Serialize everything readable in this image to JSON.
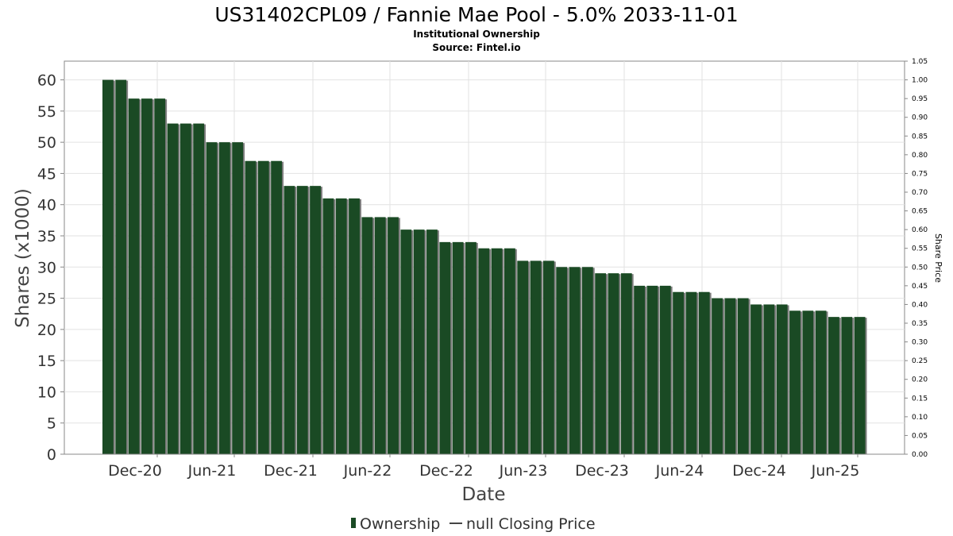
{
  "chart_data": {
    "type": "bar",
    "title": "US31402CPL09 / Fannie Mae Pool - 5.0% 2033-11-01",
    "subtitle": "Institutional Ownership",
    "source": "Source: Fintel.io",
    "xlabel": "Date",
    "ylabel": "Shares (x1000)",
    "y2label": "Share Price",
    "ylim": [
      0,
      63
    ],
    "y2lim": [
      0,
      1.05
    ],
    "yticks": [
      "0",
      "5",
      "10",
      "15",
      "20",
      "25",
      "30",
      "35",
      "40",
      "45",
      "50",
      "55",
      "60"
    ],
    "y2ticks": [
      "0.00",
      "0.05",
      "0.10",
      "0.15",
      "0.20",
      "0.25",
      "0.30",
      "0.35",
      "0.40",
      "0.45",
      "0.50",
      "0.55",
      "0.60",
      "0.65",
      "0.70",
      "0.75",
      "0.80",
      "0.85",
      "0.90",
      "0.95",
      "1.00",
      "1.05"
    ],
    "xticks": [
      "Dec-20",
      "Jun-21",
      "Dec-21",
      "Jun-22",
      "Dec-22",
      "Jun-23",
      "Dec-23",
      "Jun-24",
      "Dec-24",
      "Jun-25"
    ],
    "grid": true,
    "legend_position": "bottom",
    "series": [
      {
        "name": "Ownership",
        "color": "#1a4a24",
        "values": [
          60,
          60,
          57,
          57,
          57,
          53,
          53,
          53,
          50,
          50,
          50,
          47,
          47,
          47,
          43,
          43,
          43,
          41,
          41,
          41,
          38,
          38,
          38,
          36,
          36,
          36,
          34,
          34,
          34,
          33,
          33,
          33,
          31,
          31,
          31,
          30,
          30,
          30,
          29,
          29,
          29,
          27,
          27,
          27,
          26,
          26,
          26,
          25,
          25,
          25,
          24,
          24,
          24,
          23,
          23,
          23,
          22,
          22,
          22
        ]
      }
    ],
    "legend": [
      {
        "label": "Ownership",
        "color": "#1a4a24"
      },
      {
        "label": "null Closing Price",
        "color": "#444444"
      }
    ]
  }
}
